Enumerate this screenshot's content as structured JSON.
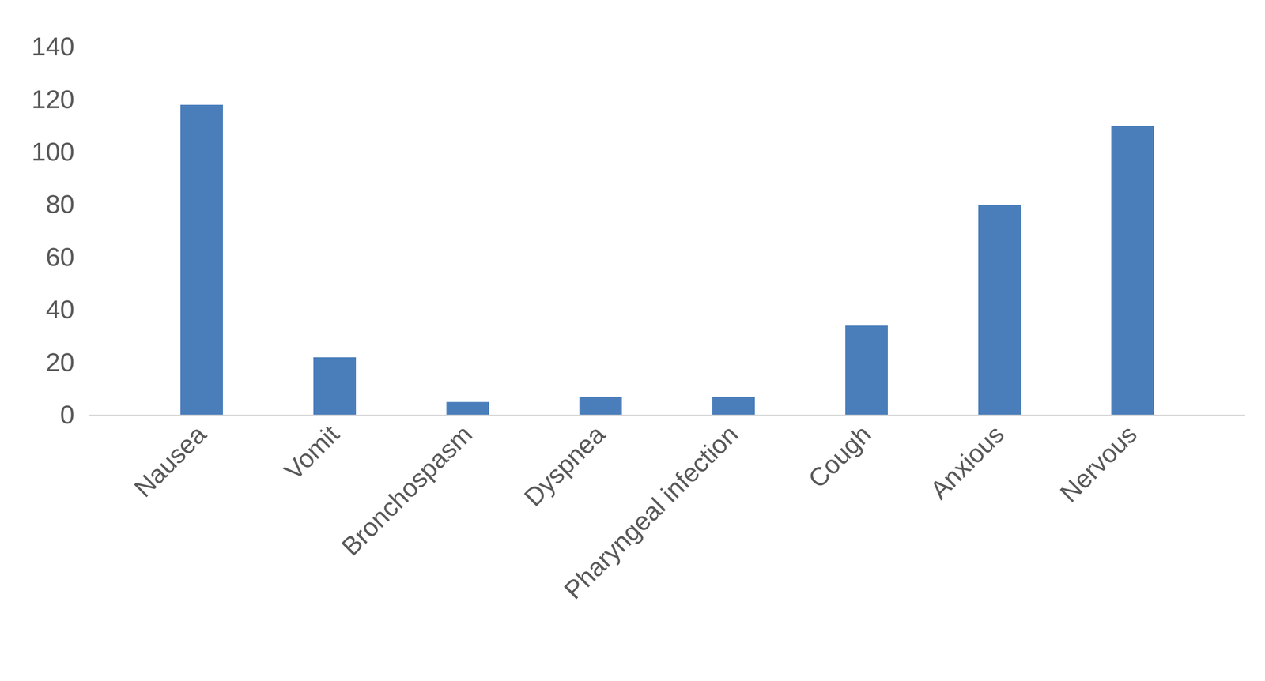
{
  "chart_data": {
    "type": "bar",
    "categories": [
      "Nausea",
      "Vomit",
      "Bronchospasm",
      "Dyspnea",
      "Pharyngeal infection",
      "Cough",
      "Anxious",
      "Nervous"
    ],
    "values": [
      118,
      22,
      5,
      7,
      7,
      34,
      80,
      110
    ],
    "color": "#4a7ebb",
    "ylim": [
      0,
      140
    ],
    "yticks": [
      0,
      20,
      40,
      60,
      80,
      100,
      120,
      140
    ],
    "grid": false
  }
}
